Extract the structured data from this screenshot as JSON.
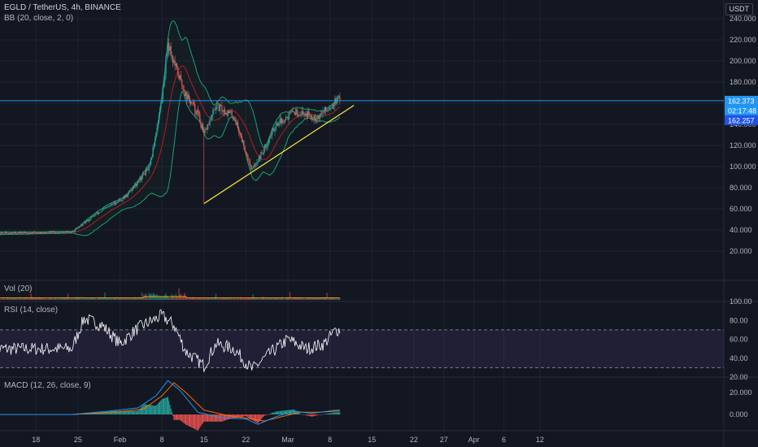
{
  "header": {
    "title": "EGLD / TetherUS, 4h, BINANCE",
    "currency": "USDT"
  },
  "indicators": {
    "bb": "BB (20, close, 2, 0)",
    "vol": "Vol (20)",
    "rsi": "RSI (14, close)",
    "macd": "MACD (12, 26, close, 9)"
  },
  "price_tags": {
    "last": "162.373",
    "countdown": "02:17:48",
    "bb_basis": "162.257"
  },
  "colors": {
    "background": "#131722",
    "up": "#26a69a",
    "down": "#ef5350",
    "bollinger": "#1aa06f",
    "bollinger_basis": "#b71c1c",
    "horizontal_line": "#2196f3",
    "trendline": "#ffeb3b",
    "rsi": "#ffffff",
    "rsi_band": "#7e57c2",
    "macd": "#2196f3",
    "macd_signal": "#ff6d00"
  },
  "chart_data": [
    {
      "type": "candlestick",
      "title": "EGLD / TetherUS, 4h, BINANCE",
      "x_tick_labels": [
        "18",
        "25",
        "Feb",
        "8",
        "15",
        "22",
        "Mar",
        "8",
        "15",
        "22",
        "27",
        "Apr",
        "6",
        "12"
      ],
      "y_tick_labels": [
        "20.000",
        "40.000",
        "60.000",
        "80.000",
        "100.000",
        "120.000",
        "140.000",
        "160.000",
        "180.000",
        "200.000",
        "220.000",
        "240.000"
      ],
      "ylim": [
        0,
        250
      ],
      "key_points": [
        {
          "x": "Jan 11",
          "y": 37
        },
        {
          "x": "Jan 24",
          "y": 38
        },
        {
          "x": "Jan 28",
          "y": 55
        },
        {
          "x": "Feb 2",
          "y": 72
        },
        {
          "x": "Feb 6",
          "y": 100
        },
        {
          "x": "Feb 8",
          "y": 165
        },
        {
          "x": "Feb 9",
          "y": 218
        },
        {
          "x": "Feb 10",
          "y": 198
        },
        {
          "x": "Feb 12",
          "y": 168
        },
        {
          "x": "Feb 14",
          "y": 150
        },
        {
          "x": "Feb 15",
          "y": 130
        },
        {
          "x": "Feb 17",
          "y": 157
        },
        {
          "x": "Feb 20",
          "y": 148
        },
        {
          "x": "Feb 23",
          "y": 97
        },
        {
          "x": "Feb 25",
          "y": 116
        },
        {
          "x": "Feb 27",
          "y": 140
        },
        {
          "x": "Mar 2",
          "y": 152
        },
        {
          "x": "Mar 4",
          "y": 150
        },
        {
          "x": "Mar 6",
          "y": 147
        },
        {
          "x": "Mar 9",
          "y": 162
        }
      ],
      "bb_min_low": 34,
      "bb_max_high": 233,
      "trendline": {
        "from": {
          "x": "Feb 15",
          "y": 65
        },
        "to": {
          "x": "Mar 12",
          "y": 158
        }
      },
      "horizontal_line": 162.373,
      "wick_low_feb15": 65,
      "grid": true
    },
    {
      "type": "histogram",
      "title": "Vol (20)"
    },
    {
      "type": "line",
      "title": "RSI (14, close)",
      "y_tick_labels": [
        "20.00",
        "40.00",
        "60.00",
        "80.00",
        "100.00"
      ],
      "ylim": [
        20,
        100
      ],
      "bands": [
        30,
        70
      ],
      "key_points": [
        {
          "x": "Jan 11",
          "y": 50
        },
        {
          "x": "Jan 24",
          "y": 50
        },
        {
          "x": "Jan 26",
          "y": 82
        },
        {
          "x": "Jan 29",
          "y": 75
        },
        {
          "x": "Feb 1",
          "y": 55
        },
        {
          "x": "Feb 4",
          "y": 72
        },
        {
          "x": "Feb 8",
          "y": 85
        },
        {
          "x": "Feb 10",
          "y": 75
        },
        {
          "x": "Feb 12",
          "y": 47
        },
        {
          "x": "Feb 15",
          "y": 32
        },
        {
          "x": "Feb 17",
          "y": 55
        },
        {
          "x": "Feb 20",
          "y": 50
        },
        {
          "x": "Feb 23",
          "y": 28
        },
        {
          "x": "Feb 26",
          "y": 45
        },
        {
          "x": "Mar 1",
          "y": 60
        },
        {
          "x": "Mar 4",
          "y": 50
        },
        {
          "x": "Mar 7",
          "y": 55
        },
        {
          "x": "Mar 9",
          "y": 70
        }
      ]
    },
    {
      "type": "line",
      "title": "MACD (12, 26, close, 9)",
      "y_tick_labels": [
        "0.000",
        "20.000"
      ],
      "ylim": [
        -12,
        35
      ],
      "series": [
        {
          "name": "MACD",
          "key_points": [
            {
              "x": "Jan 11",
              "y": 0
            },
            {
              "x": "Jan 24",
              "y": 0
            },
            {
              "x": "Jan 30",
              "y": 3
            },
            {
              "x": "Feb 4",
              "y": 6
            },
            {
              "x": "Feb 7",
              "y": 17
            },
            {
              "x": "Feb 9",
              "y": 31
            },
            {
              "x": "Feb 11",
              "y": 22
            },
            {
              "x": "Feb 14",
              "y": 2
            },
            {
              "x": "Feb 18",
              "y": -3
            },
            {
              "x": "Feb 22",
              "y": -4
            },
            {
              "x": "Feb 24",
              "y": -9
            },
            {
              "x": "Feb 27",
              "y": -2
            },
            {
              "x": "Mar 2",
              "y": 3
            },
            {
              "x": "Mar 5",
              "y": 1
            },
            {
              "x": "Mar 9",
              "y": 4
            }
          ]
        },
        {
          "name": "Signal",
          "key_points": [
            {
              "x": "Jan 11",
              "y": 0
            },
            {
              "x": "Jan 24",
              "y": 0
            },
            {
              "x": "Jan 31",
              "y": 2
            },
            {
              "x": "Feb 5",
              "y": 5
            },
            {
              "x": "Feb 8",
              "y": 17
            },
            {
              "x": "Feb 10",
              "y": 29
            },
            {
              "x": "Feb 12",
              "y": 20
            },
            {
              "x": "Feb 15",
              "y": 4
            },
            {
              "x": "Feb 19",
              "y": -1
            },
            {
              "x": "Feb 23",
              "y": -4
            },
            {
              "x": "Feb 25",
              "y": -6
            },
            {
              "x": "Feb 28",
              "y": -2
            },
            {
              "x": "Mar 3",
              "y": 2
            },
            {
              "x": "Mar 6",
              "y": 2
            },
            {
              "x": "Mar 9",
              "y": 3
            }
          ]
        }
      ]
    }
  ]
}
